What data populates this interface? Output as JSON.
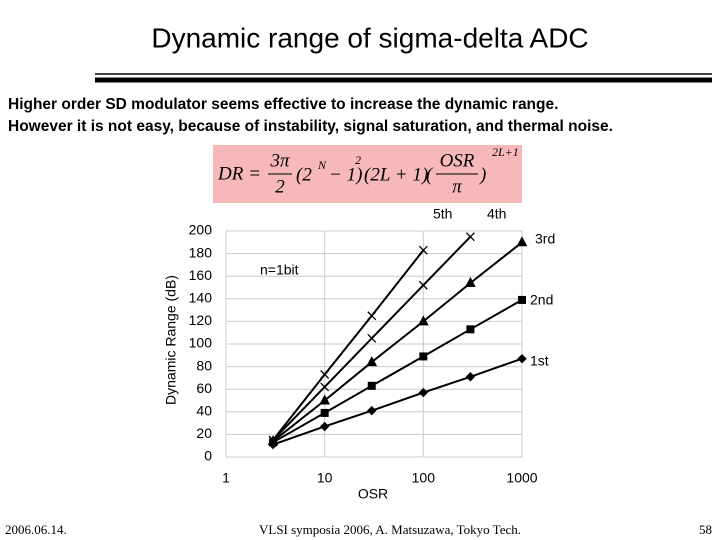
{
  "slide": {
    "title": "Dynamic range of sigma-delta ADC",
    "lines": [
      "Higher order SD modulator seems effective to increase the dynamic range.",
      "However it is not easy, because of instability, signal saturation, and thermal noise."
    ],
    "formula": {
      "lhs": "DR =",
      "coef_num": "3π",
      "coef_den": "2",
      "term1": "(2",
      "term1_exp": "N",
      "term1_end": "− 1)",
      "term1_sq": "2",
      "term2": "(2L + 1)",
      "frac_num": "OSR",
      "frac_den": "π",
      "frac_exp": "2L+1"
    },
    "footer_left": "2006.06.14.",
    "footer_center": "VLSI symposia 2006,  A. Matsuzawa, Tokyo Tech.",
    "footer_right": "58"
  },
  "chart_data": {
    "type": "line",
    "x_label": "OSR",
    "y_label": "Dynamic Range (dB)",
    "annotation": "n=1bit",
    "x": [
      3,
      10,
      30,
      100,
      300,
      1000
    ],
    "xlog": true,
    "xlim": [
      1,
      1000
    ],
    "xticks": [
      1,
      10,
      100,
      1000
    ],
    "ylim": [
      0,
      200
    ],
    "yticks": [
      0,
      20,
      40,
      60,
      80,
      100,
      120,
      140,
      160,
      180,
      200
    ],
    "grid": true,
    "series": [
      {
        "name": "1st",
        "color": "#000000",
        "marker": "diamond",
        "values": [
          11,
          27,
          41,
          57,
          71,
          87
        ]
      },
      {
        "name": "2nd",
        "color": "#000000",
        "marker": "square",
        "values": [
          13,
          39,
          63,
          89,
          113,
          139
        ]
      },
      {
        "name": "3rd",
        "color": "#000000",
        "marker": "triangle",
        "values": [
          14,
          50,
          84,
          120,
          154,
          190
        ]
      },
      {
        "name": "4th",
        "color": "#000000",
        "marker": "x",
        "values": [
          15,
          62,
          105,
          152,
          195,
          null
        ]
      },
      {
        "name": "5th",
        "color": "#000000",
        "marker": "x",
        "values": [
          15,
          73,
          125,
          183,
          null,
          null
        ]
      }
    ]
  }
}
